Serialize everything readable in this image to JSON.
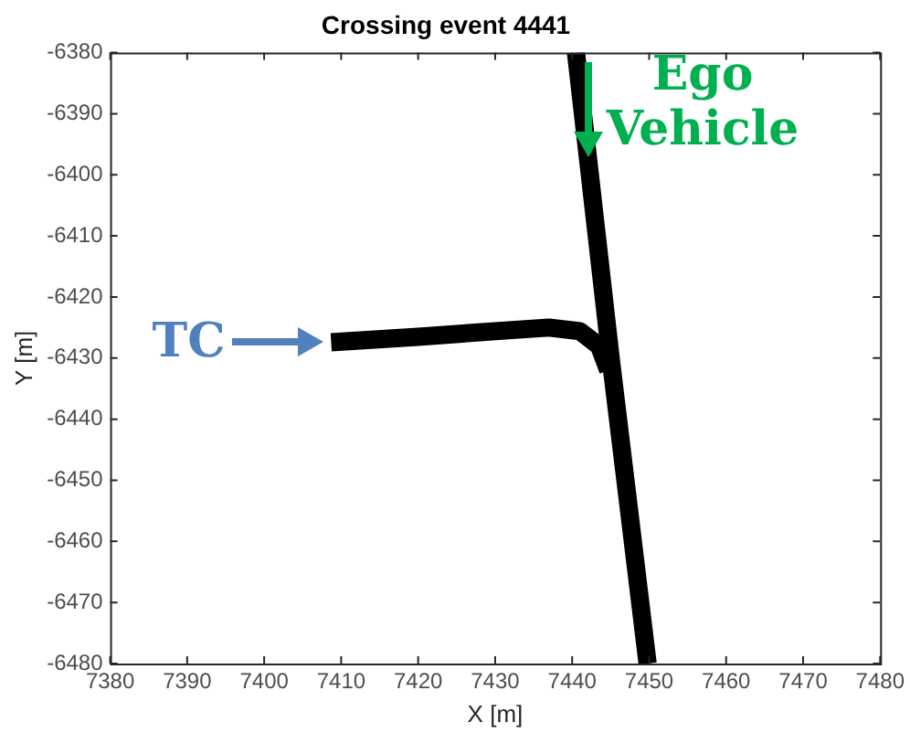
{
  "chart_data": {
    "type": "line",
    "title": "Crossing event 4441",
    "xlabel": "X [m]",
    "ylabel": "Y [m]",
    "xlim": [
      7380,
      7480
    ],
    "ylim": [
      -6480,
      -6380
    ],
    "xticks": [
      7380,
      7390,
      7400,
      7410,
      7420,
      7430,
      7440,
      7450,
      7460,
      7470,
      7480
    ],
    "yticks": [
      -6480,
      -6470,
      -6460,
      -6450,
      -6440,
      -6430,
      -6420,
      -6410,
      -6400,
      -6390,
      -6380
    ],
    "grid": false,
    "legend": false,
    "marker": "none",
    "line_style": "solid",
    "series": [
      {
        "color": "#000000",
        "x": [
          7440.5,
          7445,
          7449.8
        ],
        "values": [
          -6380,
          -6430,
          -6480
        ]
      },
      {
        "color": "#000000",
        "x": [
          7408.7,
          7420,
          7430,
          7437,
          7441,
          7443.5,
          7444.7
        ],
        "values": [
          -6427.4,
          -6426.5,
          -6425.6,
          -6425,
          -6425.6,
          -6428,
          -6432
        ]
      }
    ],
    "annotations": [
      {
        "text": "TC",
        "x": 7408.7,
        "y": -6427.4
      },
      {
        "text": "Ego Vehicle",
        "x": 7442,
        "y": -6397
      }
    ]
  }
}
